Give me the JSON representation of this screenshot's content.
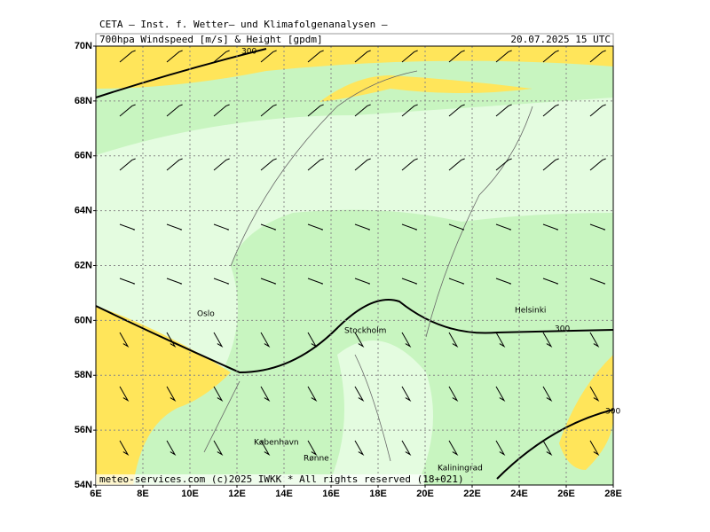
{
  "header": {
    "title": "CETA – Inst. f. Wetter– und Klimafolgenanalysen –",
    "subtitle": "700hpa Windspeed [m/s] & Height [gpdm]",
    "datetime": "20.07.2025 15 UTC"
  },
  "map": {
    "lat_labels": [
      "70N",
      "68N",
      "66N",
      "64N",
      "62N",
      "60N",
      "58N",
      "56N",
      "54N"
    ],
    "lon_labels": [
      "6E",
      "8E",
      "10E",
      "12E",
      "14E",
      "16E",
      "18E",
      "20E",
      "22E",
      "24E",
      "26E",
      "28E"
    ],
    "places": [
      "Oslo",
      "Stockholm",
      "Helsinki",
      "København",
      "Rønne",
      "Kaliningrad"
    ],
    "contour_labels": [
      "300",
      "300",
      "300"
    ]
  },
  "footer": "meteo-services.com (c)2025 IWKK * All rights reserved (18+021)"
}
